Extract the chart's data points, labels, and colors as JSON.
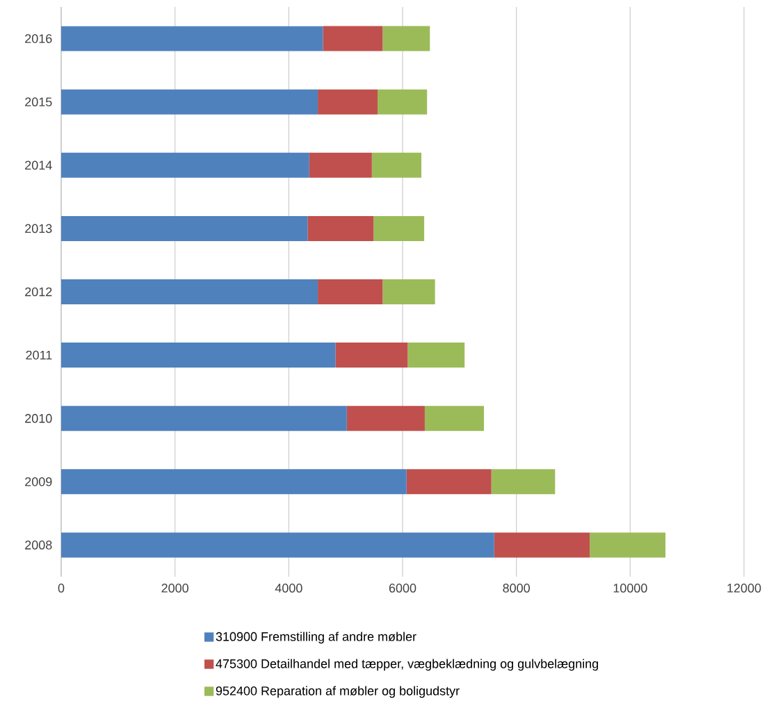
{
  "chart_data": {
    "type": "bar",
    "orientation": "horizontal",
    "stacked": true,
    "categories": [
      "2016",
      "2015",
      "2014",
      "2013",
      "2012",
      "2011",
      "2010",
      "2009",
      "2008"
    ],
    "series": [
      {
        "name": "310900 Fremstilling af andre møbler",
        "color": "#4f81bd",
        "values": [
          4600,
          4510,
          4360,
          4330,
          4510,
          4820,
          5020,
          6070,
          7610
        ]
      },
      {
        "name": "475300 Detailhandel med tæpper, vægbeklædning og gulvbelægning",
        "color": "#c0504d",
        "values": [
          1050,
          1050,
          1100,
          1160,
          1140,
          1270,
          1370,
          1490,
          1680
        ]
      },
      {
        "name": "952400 Reparation af møbler og boligudstyr",
        "color": "#9bbb59",
        "values": [
          830,
          870,
          870,
          890,
          920,
          1000,
          1040,
          1120,
          1330
        ]
      }
    ],
    "xlim": [
      0,
      12000
    ],
    "xticks": [
      0,
      2000,
      4000,
      6000,
      8000,
      10000,
      12000
    ],
    "grid": "x",
    "legend": "bottom"
  }
}
